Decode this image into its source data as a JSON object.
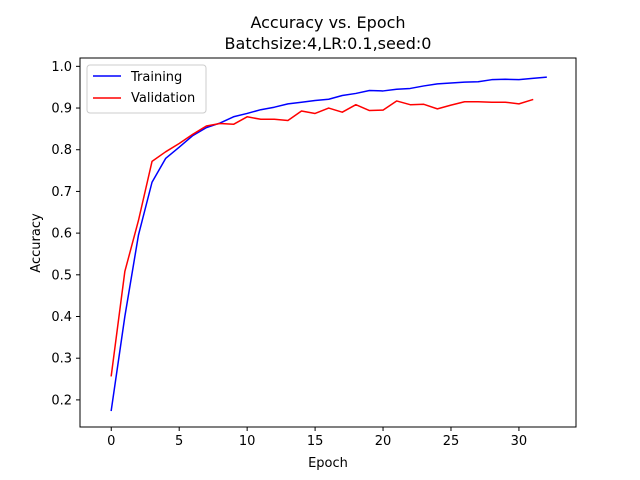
{
  "chart_data": {
    "type": "line",
    "title": "Accuracy vs. Epoch",
    "subtitle": "Batchsize:4,LR:0.1,seed:0",
    "xlabel": "Epoch",
    "ylabel": "Accuracy",
    "xlim": [
      -2.3,
      34.2
    ],
    "ylim": [
      0.135,
      1.02
    ],
    "xticks": [
      0,
      5,
      10,
      15,
      20,
      25,
      30
    ],
    "yticks": [
      0.2,
      0.3,
      0.4,
      0.5,
      0.6,
      0.7,
      0.8,
      0.9,
      1.0
    ],
    "ytick_labels": [
      "0.2",
      "0.3",
      "0.4",
      "0.5",
      "0.6",
      "0.7",
      "0.8",
      "0.9",
      "1.0"
    ],
    "grid": false,
    "legend": "upper-left",
    "series": [
      {
        "name": "Training",
        "color": "#0000ff",
        "x": [
          0,
          1,
          2,
          3,
          4,
          5,
          6,
          7,
          8,
          9,
          10,
          11,
          12,
          13,
          14,
          15,
          16,
          17,
          18,
          19,
          20,
          21,
          22,
          23,
          24,
          25,
          26,
          27,
          28,
          29,
          30,
          31,
          32
        ],
        "values": [
          0.175,
          0.4,
          0.595,
          0.722,
          0.779,
          0.806,
          0.834,
          0.853,
          0.864,
          0.879,
          0.887,
          0.896,
          0.902,
          0.91,
          0.914,
          0.918,
          0.921,
          0.93,
          0.935,
          0.942,
          0.941,
          0.945,
          0.947,
          0.953,
          0.958,
          0.96,
          0.962,
          0.963,
          0.968,
          0.969,
          0.968,
          0.971,
          0.974
        ]
      },
      {
        "name": "Validation",
        "color": "#ff0000",
        "x": [
          0,
          1,
          2,
          3,
          4,
          5,
          6,
          7,
          8,
          9,
          10,
          11,
          12,
          13,
          14,
          15,
          16,
          17,
          18,
          19,
          20,
          21,
          22,
          23,
          24,
          25,
          26,
          27,
          28,
          29,
          30,
          31
        ],
        "values": [
          0.258,
          0.508,
          0.63,
          0.772,
          0.795,
          0.815,
          0.837,
          0.857,
          0.863,
          0.861,
          0.879,
          0.873,
          0.873,
          0.87,
          0.893,
          0.887,
          0.9,
          0.89,
          0.908,
          0.894,
          0.895,
          0.917,
          0.908,
          0.909,
          0.898,
          0.907,
          0.915,
          0.915,
          0.914,
          0.914,
          0.91,
          0.92
        ]
      }
    ]
  }
}
